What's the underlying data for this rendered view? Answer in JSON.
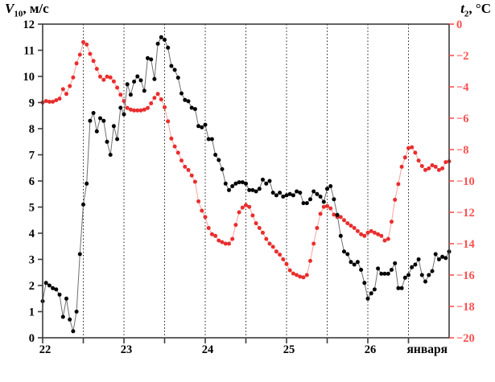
{
  "chart_data": {
    "type": "line",
    "title": "",
    "x": {
      "start_day": 22,
      "end_day": 27,
      "step_hours": 1,
      "tick_labels": [
        "22",
        "23",
        "24",
        "25",
        "26"
      ],
      "month_label": "января",
      "gridlines": "dashed vertical every 0.5 day from 22.5 to 26.5"
    },
    "left_axis": {
      "title_symbol": "V",
      "title_sub": "10",
      "title_unit": ", м/с",
      "min": 0,
      "max": 12,
      "tick_step": 1,
      "tick_labels": [
        "0",
        "1",
        "2",
        "3",
        "4",
        "5",
        "6",
        "7",
        "8",
        "9",
        "10",
        "11",
        "12"
      ],
      "text_color": "#000000"
    },
    "right_axis": {
      "title_symbol": "t",
      "title_sub": "2",
      "title_unit": ", °C",
      "min": -20,
      "max": 0,
      "tick_step": 2,
      "tick_labels": [
        "0",
        "−2",
        "−4",
        "−6",
        "−8",
        "−10",
        "−12",
        "−14",
        "−16",
        "−18",
        "−20"
      ],
      "text_color": "#fb5050"
    },
    "colors": {
      "axis": "#3c3c3c",
      "grid": "#1a1a1a",
      "wind_dot": "#000000",
      "wind_line": "#6f6f6f",
      "temp_dot": "#e92d2d",
      "temp_line": "#f8a2a0"
    },
    "series": [
      {
        "name": "temperature-t2",
        "axis": "right",
        "values": [
          -5.0,
          -4.9,
          -4.95,
          -4.95,
          -4.85,
          -4.75,
          -4.15,
          -4.45,
          -3.95,
          -3.4,
          -2.5,
          -1.95,
          -1.15,
          -1.3,
          -1.9,
          -2.35,
          -2.85,
          -3.35,
          -3.55,
          -3.35,
          -3.4,
          -3.65,
          -4.05,
          -4.5,
          -4.9,
          -5.35,
          -5.45,
          -5.5,
          -5.5,
          -5.5,
          -5.45,
          -5.35,
          -5.05,
          -4.7,
          -4.45,
          -4.8,
          -5.3,
          -6.2,
          -7.3,
          -7.8,
          -8.2,
          -8.7,
          -9.1,
          -9.3,
          -9.65,
          -10.05,
          -11.3,
          -11.9,
          -12.3,
          -13.0,
          -13.4,
          -13.5,
          -13.8,
          -13.9,
          -14.0,
          -14.0,
          -13.7,
          -12.8,
          -12.0,
          -11.7,
          -11.55,
          -11.65,
          -12.2,
          -12.7,
          -13.0,
          -13.3,
          -13.7,
          -14.0,
          -14.2,
          -14.5,
          -14.7,
          -15.0,
          -15.3,
          -15.7,
          -15.9,
          -16.0,
          -16.1,
          -16.15,
          -16.0,
          -15.1,
          -14.0,
          -13.0,
          -12.1,
          -11.65,
          -11.6,
          -11.75,
          -12.15,
          -12.3,
          -12.3,
          -12.5,
          -12.7,
          -12.85,
          -13.0,
          -13.2,
          -13.4,
          -13.5,
          -13.3,
          -13.2,
          -13.3,
          -13.4,
          -13.5,
          -13.8,
          -13.7,
          -12.6,
          -11.2,
          -10.2,
          -9.1,
          -8.5,
          -7.9,
          -7.85,
          -8.2,
          -8.7,
          -9.05,
          -9.3,
          -9.2,
          -9.0,
          -9.1,
          -9.3,
          -9.2,
          -8.8,
          -8.75
        ]
      },
      {
        "name": "wind-speed-v10",
        "axis": "left",
        "values": [
          1.4,
          2.1,
          2.0,
          1.9,
          1.85,
          1.65,
          0.8,
          1.5,
          0.7,
          0.25,
          1.0,
          3.2,
          5.1,
          5.9,
          8.3,
          8.6,
          7.9,
          8.4,
          8.3,
          7.5,
          7.0,
          8.1,
          7.6,
          8.8,
          8.55,
          9.7,
          9.3,
          9.8,
          10.0,
          9.85,
          9.45,
          10.7,
          10.65,
          9.9,
          11.25,
          11.5,
          11.4,
          11.1,
          10.4,
          10.25,
          9.95,
          9.35,
          9.1,
          9.05,
          8.8,
          8.75,
          8.1,
          8.05,
          8.15,
          7.6,
          7.6,
          7.0,
          6.8,
          6.45,
          5.9,
          5.65,
          5.8,
          5.9,
          5.95,
          5.95,
          5.9,
          5.65,
          5.65,
          5.6,
          5.7,
          6.05,
          5.9,
          6.0,
          5.55,
          5.45,
          5.55,
          5.4,
          5.45,
          5.5,
          5.45,
          5.6,
          5.55,
          5.15,
          5.15,
          5.3,
          5.6,
          5.5,
          5.4,
          5.2,
          5.7,
          5.8,
          5.3,
          4.7,
          3.9,
          3.3,
          3.2,
          2.9,
          2.8,
          2.9,
          2.6,
          2.1,
          1.5,
          1.7,
          1.85,
          2.65,
          2.45,
          2.45,
          2.45,
          2.6,
          2.85,
          1.9,
          1.9,
          2.3,
          2.4,
          2.7,
          2.8,
          3.0,
          2.4,
          2.15,
          2.4,
          2.55,
          3.2,
          3.0,
          3.1,
          3.05,
          3.3
        ]
      }
    ]
  }
}
